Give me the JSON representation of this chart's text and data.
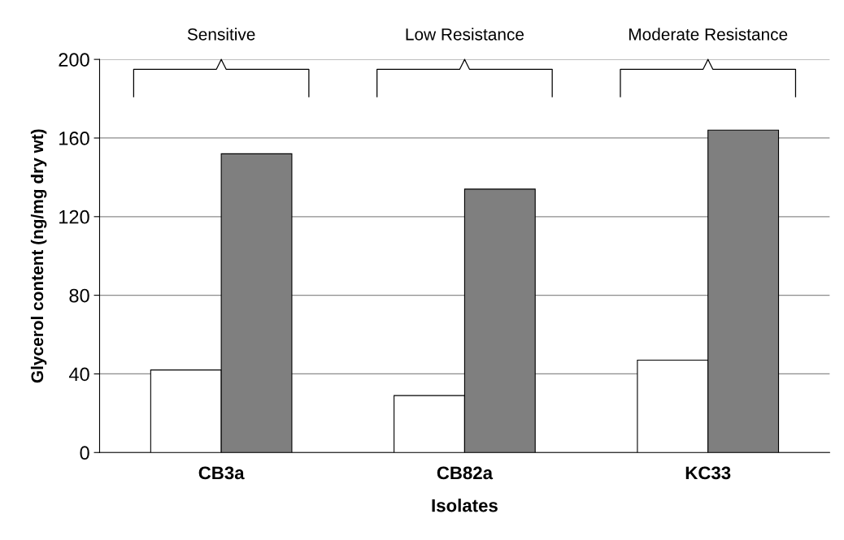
{
  "chart_data": {
    "type": "bar",
    "xlabel": "Isolates",
    "ylabel": "Glycerol content (ng/mg dry wt)",
    "categories": [
      "CB3a",
      "CB82a",
      "KC33"
    ],
    "series": [
      {
        "color": "#ffffff",
        "values": [
          42,
          29,
          47
        ]
      },
      {
        "color": "#7f7f7f",
        "values": [
          152,
          134,
          164
        ]
      }
    ],
    "ylim": [
      0,
      200
    ],
    "yticks": [
      0,
      40,
      80,
      120,
      160,
      200
    ],
    "grid": "y",
    "legend": false,
    "annotations": [
      "Sensitive",
      "Low Resistance",
      "Moderate Resistance"
    ]
  }
}
